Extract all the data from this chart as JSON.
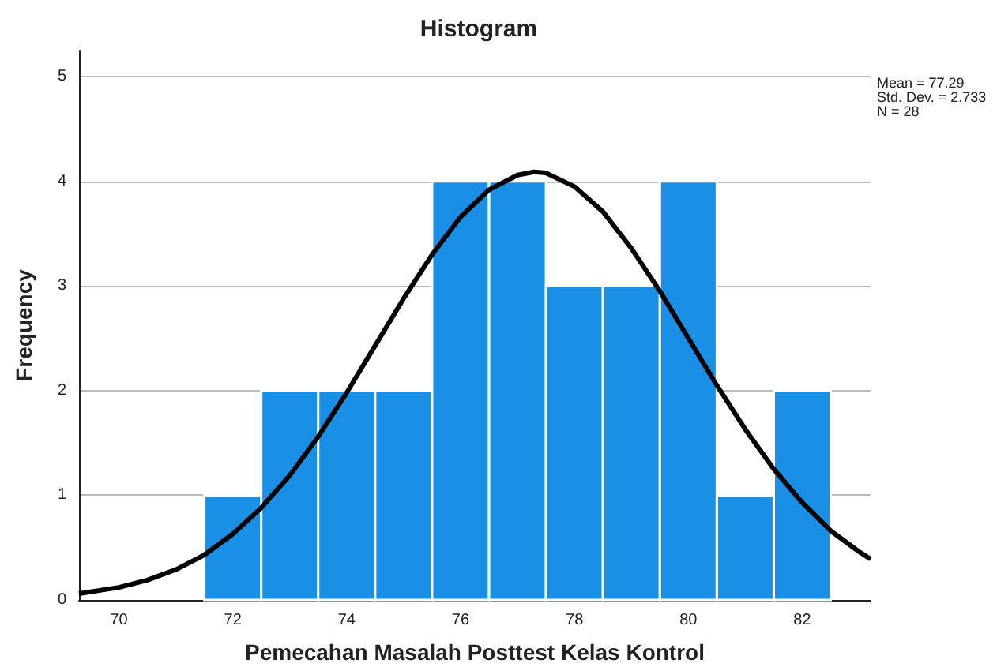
{
  "chart_data": {
    "type": "histogram",
    "title": "Histogram",
    "xlabel": "Pemecahan Masalah Posttest Kelas Kontrol",
    "ylabel": "Frequency",
    "bins": [
      71.5,
      72.5,
      73.5,
      74.5,
      75.5,
      76.5,
      77.5,
      78.5,
      79.5,
      80.5,
      81.5,
      82.5
    ],
    "values": [
      1,
      2,
      2,
      2,
      4,
      4,
      3,
      3,
      4,
      1,
      2
    ],
    "color": "#1a8fe6",
    "series": [
      {
        "type": "line",
        "color": "#000000",
        "x": [
          69.3,
          70,
          70.5,
          71,
          71.5,
          72,
          72.5,
          73,
          73.5,
          74,
          74.5,
          75,
          75.5,
          76,
          76.5,
          77,
          77.29,
          77.5,
          78,
          78.5,
          79,
          79.5,
          80,
          80.5,
          81,
          81.5,
          82,
          82.5,
          83,
          83.2
        ],
        "values": [
          0.06,
          0.12,
          0.19,
          0.29,
          0.43,
          0.63,
          0.88,
          1.19,
          1.56,
          1.98,
          2.43,
          2.88,
          3.3,
          3.66,
          3.92,
          4.06,
          4.09,
          4.08,
          3.95,
          3.71,
          3.36,
          2.95,
          2.5,
          2.05,
          1.63,
          1.25,
          0.93,
          0.66,
          0.46,
          0.39
        ]
      }
    ],
    "xlim": [
      69.3,
      83.2
    ],
    "xticks": [
      70,
      72,
      74,
      76,
      78,
      80,
      82
    ],
    "ylim": [
      0,
      5.25
    ],
    "yticks": [
      0,
      1,
      2,
      3,
      4,
      5
    ],
    "grid": "y",
    "annotations": [
      "Mean = 77.29",
      "Std. Dev. = 2.733",
      "N = 28"
    ]
  }
}
